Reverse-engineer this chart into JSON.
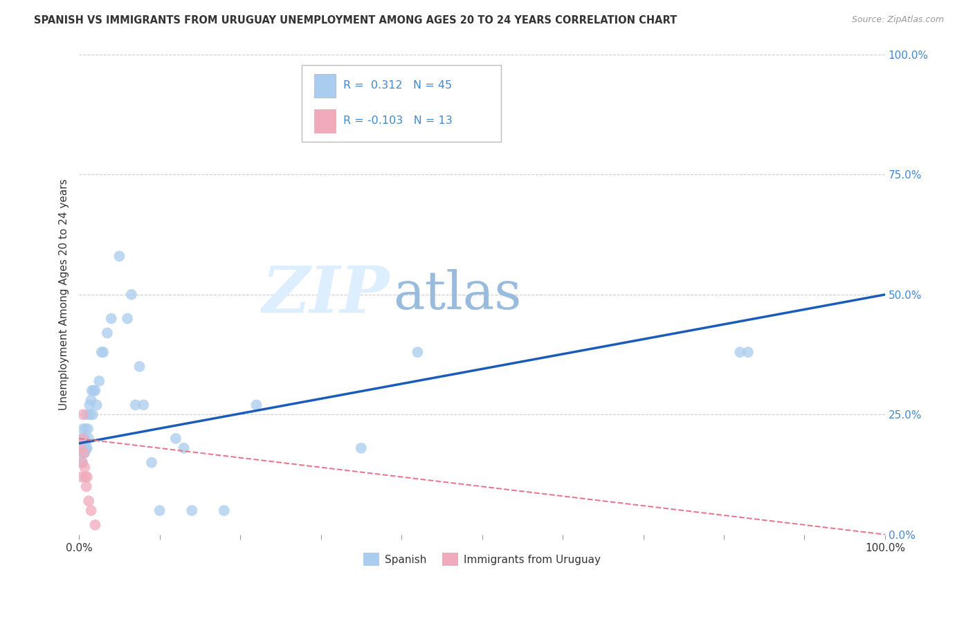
{
  "title": "SPANISH VS IMMIGRANTS FROM URUGUAY UNEMPLOYMENT AMONG AGES 20 TO 24 YEARS CORRELATION CHART",
  "source": "Source: ZipAtlas.com",
  "ylabel": "Unemployment Among Ages 20 to 24 years",
  "xlim": [
    0,
    1
  ],
  "ylim": [
    0,
    1
  ],
  "ytick_labels": [
    "0.0%",
    "25.0%",
    "50.0%",
    "75.0%",
    "100.0%"
  ],
  "ytick_positions": [
    0.0,
    0.25,
    0.5,
    0.75,
    1.0
  ],
  "xtick_positions": [
    0.0,
    0.1,
    0.2,
    0.3,
    0.4,
    0.5,
    0.6,
    0.7,
    0.8,
    0.9,
    1.0
  ],
  "grid_color": "#cccccc",
  "background_color": "#ffffff",
  "spanish_color": "#aaccee",
  "uruguay_color": "#f0aabb",
  "line_spanish_color": "#1a5cb8",
  "line_uruguay_color": "#e87890",
  "watermark_zip": "ZIP",
  "watermark_atlas": "atlas",
  "legend_R_spanish": "0.312",
  "legend_N_spanish": "45",
  "legend_R_uruguay": "-0.103",
  "legend_N_uruguay": "13",
  "spanish_x": [
    0.002,
    0.003,
    0.004,
    0.005,
    0.005,
    0.006,
    0.007,
    0.007,
    0.008,
    0.008,
    0.009,
    0.01,
    0.01,
    0.011,
    0.012,
    0.013,
    0.014,
    0.015,
    0.016,
    0.017,
    0.018,
    0.02,
    0.022,
    0.025,
    0.028,
    0.03,
    0.035,
    0.04,
    0.05,
    0.06,
    0.065,
    0.07,
    0.075,
    0.08,
    0.09,
    0.1,
    0.12,
    0.13,
    0.14,
    0.18,
    0.22,
    0.35,
    0.42,
    0.82,
    0.83
  ],
  "spanish_y": [
    0.17,
    0.2,
    0.15,
    0.18,
    0.22,
    0.17,
    0.2,
    0.17,
    0.22,
    0.19,
    0.18,
    0.25,
    0.18,
    0.22,
    0.2,
    0.27,
    0.25,
    0.28,
    0.3,
    0.25,
    0.3,
    0.3,
    0.27,
    0.32,
    0.38,
    0.38,
    0.42,
    0.45,
    0.58,
    0.45,
    0.5,
    0.27,
    0.35,
    0.27,
    0.15,
    0.05,
    0.2,
    0.18,
    0.05,
    0.05,
    0.27,
    0.18,
    0.38,
    0.38,
    0.38
  ],
  "uruguay_x": [
    0.002,
    0.003,
    0.004,
    0.005,
    0.005,
    0.006,
    0.007,
    0.008,
    0.009,
    0.01,
    0.012,
    0.015,
    0.02
  ],
  "uruguay_y": [
    0.18,
    0.12,
    0.15,
    0.2,
    0.25,
    0.17,
    0.14,
    0.12,
    0.1,
    0.12,
    0.07,
    0.05,
    0.02
  ],
  "spanish_line_x0": 0.0,
  "spanish_line_y0": 0.19,
  "spanish_line_x1": 1.0,
  "spanish_line_y1": 0.5,
  "uruguay_line_x0": 0.0,
  "uruguay_line_y0": 0.2,
  "uruguay_line_x1": 1.0,
  "uruguay_line_y1": 0.0,
  "marker_size": 130
}
